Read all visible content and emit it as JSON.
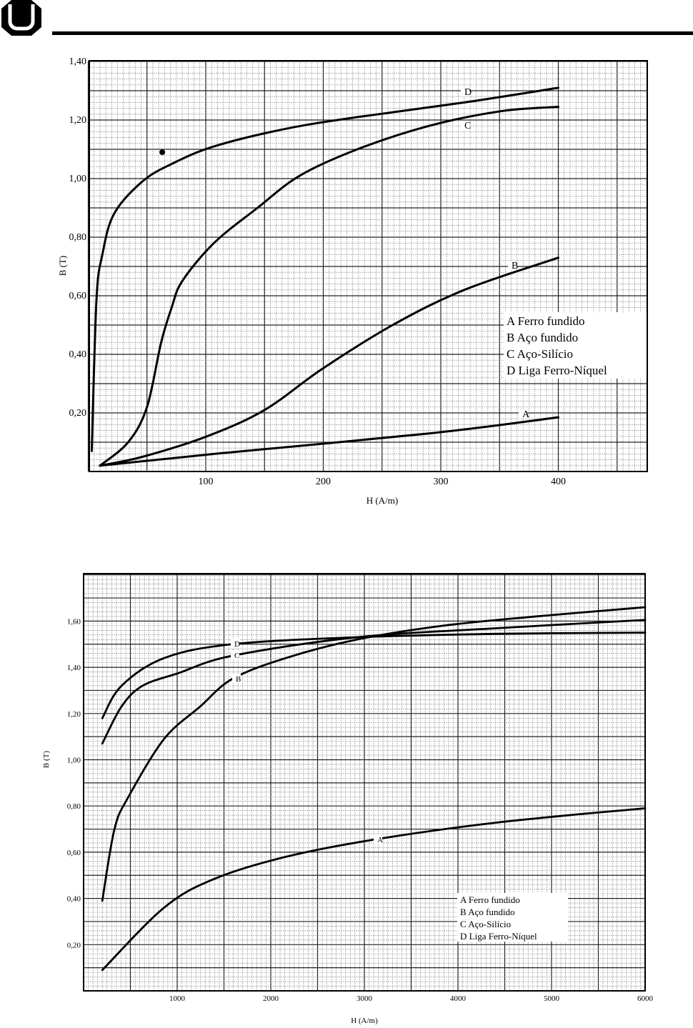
{
  "header": {
    "logo_text": "UFU"
  },
  "colors": {
    "ink": "#000000",
    "grid": "#555555",
    "paper": "#ffffff"
  },
  "chart_data": [
    {
      "type": "line",
      "title": "",
      "xlabel": "H (A/m)",
      "ylabel": "B (T)",
      "xlim": [
        0,
        475
      ],
      "ylim": [
        0,
        1.4
      ],
      "xticks": [
        100,
        200,
        300,
        400
      ],
      "xtick_labels": [
        "100",
        "200",
        "300",
        "400"
      ],
      "yticks": [
        0.2,
        0.4,
        0.6,
        0.8,
        1.0,
        1.2,
        1.4
      ],
      "ytick_labels": [
        "0,20",
        "0,40",
        "0,60",
        "0,80",
        "1,00",
        "1,20",
        "1,40"
      ],
      "grid": true,
      "legend_position": "right-middle",
      "legend": [
        "A  Ferro fundido",
        "B  Aço fundido",
        "C  Aço-Silício",
        "D  Liga Ferro-Níquel"
      ],
      "series": [
        {
          "name": "D",
          "label": "D",
          "x": [
            3,
            7,
            12,
            22,
            46,
            71,
            107,
            168,
            229,
            320,
            400
          ],
          "y": [
            0.07,
            0.585,
            0.74,
            0.88,
            0.99,
            1.05,
            1.11,
            1.17,
            1.21,
            1.26,
            1.31
          ]
        },
        {
          "name": "C",
          "label": "C",
          "x": [
            10,
            34,
            50,
            62,
            71,
            80,
            107,
            144,
            180,
            229,
            290,
            351,
            400
          ],
          "y": [
            0.02,
            0.1,
            0.22,
            0.44,
            0.56,
            0.65,
            0.78,
            0.9,
            1.01,
            1.1,
            1.18,
            1.23,
            1.245
          ]
        },
        {
          "name": "B",
          "label": "B",
          "x": [
            10,
            46,
            101,
            150,
            199,
            259,
            320,
            400
          ],
          "y": [
            0.02,
            0.05,
            0.12,
            0.21,
            0.35,
            0.5,
            0.62,
            0.73
          ]
        },
        {
          "name": "A",
          "label": "A",
          "x": [
            10,
            107,
            290,
            400
          ],
          "y": [
            0.02,
            0.06,
            0.13,
            0.185
          ]
        }
      ],
      "annotations": [
        {
          "type": "point",
          "x": 63,
          "y": 1.09
        }
      ]
    },
    {
      "type": "line",
      "title": "",
      "xlabel": "H (A/m)",
      "ylabel": "B (T)",
      "xlim": [
        0,
        6000
      ],
      "ylim": [
        0,
        1.8
      ],
      "xticks": [
        1000,
        2000,
        3000,
        4000,
        5000,
        6000
      ],
      "xtick_labels": [
        "1000",
        "2000",
        "3000",
        "4000",
        "5000",
        "6000"
      ],
      "yticks": [
        0.2,
        0.4,
        0.6,
        0.8,
        1.0,
        1.2,
        1.4,
        1.6
      ],
      "ytick_labels": [
        "0,20",
        "0,40",
        "0,60",
        "0,80",
        "1,00",
        "1,20",
        "1,40",
        "1,60"
      ],
      "grid": true,
      "legend_position": "bottom-right",
      "legend": [
        "A  Ferro fundido",
        "B  Aço fundido",
        "C  Aço-Silício",
        "D  Liga Ferro-Níquel"
      ],
      "series": [
        {
          "name": "D",
          "label": "D",
          "x": [
            200,
            405,
            860,
            1590,
            2920,
            4450,
            6000
          ],
          "y": [
            1.18,
            1.32,
            1.44,
            1.5,
            1.53,
            1.545,
            1.55
          ]
        },
        {
          "name": "C",
          "label": "C",
          "x": [
            200,
            405,
            630,
            1015,
            1590,
            2920,
            4450,
            6000
          ],
          "y": [
            1.07,
            1.23,
            1.32,
            1.375,
            1.45,
            1.53,
            1.57,
            1.605
          ]
        },
        {
          "name": "B",
          "label": "B",
          "x": [
            200,
            330,
            480,
            860,
            1245,
            1590,
            2160,
            2920,
            3840,
            4830,
            6000
          ],
          "y": [
            0.39,
            0.7,
            0.84,
            1.09,
            1.23,
            1.35,
            1.44,
            1.52,
            1.58,
            1.62,
            1.66
          ]
        },
        {
          "name": "A",
          "label": "A",
          "x": [
            200,
            860,
            1400,
            2160,
            3110,
            4450,
            6000
          ],
          "y": [
            0.09,
            0.36,
            0.485,
            0.58,
            0.655,
            0.73,
            0.79
          ]
        }
      ]
    }
  ]
}
